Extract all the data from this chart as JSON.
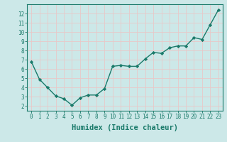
{
  "x": [
    0,
    1,
    2,
    3,
    4,
    5,
    6,
    7,
    8,
    9,
    10,
    11,
    12,
    13,
    14,
    15,
    16,
    17,
    18,
    19,
    20,
    21,
    22,
    23
  ],
  "y": [
    6.8,
    4.9,
    4.0,
    3.1,
    2.8,
    2.1,
    2.9,
    3.2,
    3.2,
    3.9,
    6.3,
    6.4,
    6.3,
    6.3,
    7.1,
    7.8,
    7.7,
    8.3,
    8.5,
    8.5,
    9.4,
    9.2,
    10.8,
    12.4
  ],
  "line_color": "#1a7a6a",
  "marker": "D",
  "marker_size": 2.2,
  "bg_color": "#cce8e8",
  "grid_color": "#e8c8c8",
  "xlabel": "Humidex (Indice chaleur)",
  "xlim": [
    -0.5,
    23.5
  ],
  "ylim": [
    1.5,
    13.0
  ],
  "yticks": [
    2,
    3,
    4,
    5,
    6,
    7,
    8,
    9,
    10,
    11,
    12
  ],
  "xticks": [
    0,
    1,
    2,
    3,
    4,
    5,
    6,
    7,
    8,
    9,
    10,
    11,
    12,
    13,
    14,
    15,
    16,
    17,
    18,
    19,
    20,
    21,
    22,
    23
  ],
  "tick_label_fontsize": 5.5,
  "xlabel_fontsize": 7.5,
  "line_width": 1.0
}
